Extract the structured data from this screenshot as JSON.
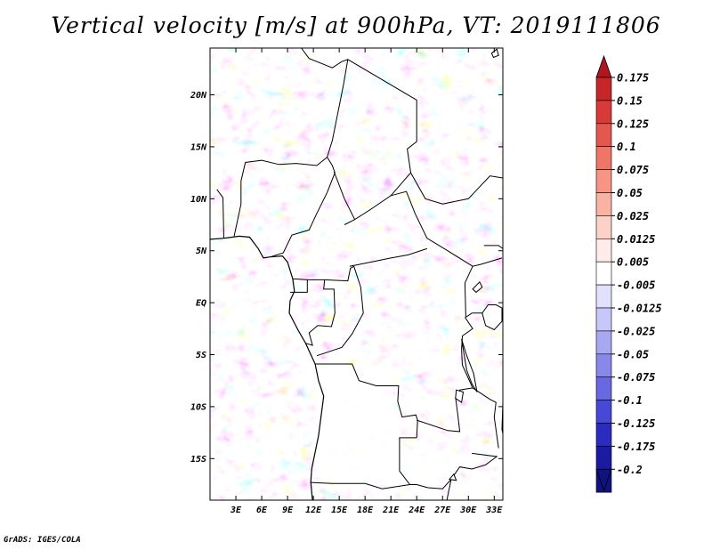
{
  "title": "Vertical velocity [m/s] at 900hPa, VT: 2019111806",
  "footer": "GrADS: IGES/COLA",
  "map": {
    "lon_range": [
      0,
      34
    ],
    "lat_range": [
      -19,
      24.5
    ],
    "lat_ticks": [
      {
        "value": 20,
        "label": "20N"
      },
      {
        "value": 15,
        "label": "15N"
      },
      {
        "value": 10,
        "label": "10N"
      },
      {
        "value": 5,
        "label": "5N"
      },
      {
        "value": 0,
        "label": "EQ"
      },
      {
        "value": -5,
        "label": "5S"
      },
      {
        "value": -10,
        "label": "10S"
      },
      {
        "value": -15,
        "label": "15S"
      }
    ],
    "lon_ticks": [
      {
        "value": 3,
        "label": "3E"
      },
      {
        "value": 6,
        "label": "6E"
      },
      {
        "value": 9,
        "label": "9E"
      },
      {
        "value": 12,
        "label": "12E"
      },
      {
        "value": 15,
        "label": "15E"
      },
      {
        "value": 18,
        "label": "18E"
      },
      {
        "value": 21,
        "label": "21E"
      },
      {
        "value": 24,
        "label": "24E"
      },
      {
        "value": 27,
        "label": "27E"
      },
      {
        "value": 30,
        "label": "30E"
      },
      {
        "value": 33,
        "label": "33E"
      }
    ],
    "borders": [
      [
        [
          10.6,
          24.5
        ],
        [
          11.5,
          23.5
        ],
        [
          14.2,
          22.6
        ],
        [
          15.3,
          23.2
        ],
        [
          16,
          23.4
        ],
        [
          24,
          19.5
        ],
        [
          24,
          15.5
        ],
        [
          22.9,
          14.8
        ],
        [
          23.3,
          12.5
        ]
      ],
      [
        [
          16,
          23.4
        ],
        [
          15.5,
          21
        ],
        [
          14.2,
          15.6
        ],
        [
          13.6,
          14
        ]
      ],
      [
        [
          3.6,
          11.7
        ],
        [
          4.1,
          13.5
        ],
        [
          6,
          13.7
        ],
        [
          8,
          13.3
        ],
        [
          10,
          13.4
        ],
        [
          12.4,
          13.2
        ],
        [
          13.6,
          14
        ]
      ],
      [
        [
          3.6,
          11.7
        ],
        [
          3.6,
          9.5
        ],
        [
          2.8,
          6.4
        ]
      ],
      [
        [
          0.8,
          10.9
        ],
        [
          1.5,
          10.1
        ],
        [
          1.6,
          6.2
        ]
      ],
      [
        [
          7,
          4.4
        ],
        [
          8.5,
          4.8
        ],
        [
          9.5,
          6.5
        ],
        [
          11.5,
          7
        ],
        [
          12.4,
          8.6
        ],
        [
          13.6,
          10.6
        ],
        [
          14.5,
          12.5
        ],
        [
          14.2,
          13.2
        ],
        [
          13.6,
          14
        ]
      ],
      [
        [
          14.4,
          12.6
        ],
        [
          15.6,
          10
        ],
        [
          16.8,
          8
        ],
        [
          18.7,
          9
        ],
        [
          21,
          10.3
        ],
        [
          23.3,
          12.5
        ]
      ],
      [
        [
          15.6,
          7.5
        ],
        [
          16.8,
          8
        ]
      ],
      [
        [
          21,
          10.3
        ],
        [
          22.8,
          10.7
        ],
        [
          23.8,
          8.6
        ],
        [
          25.2,
          6.2
        ],
        [
          27.4,
          5.1
        ],
        [
          30.5,
          3.5
        ],
        [
          31.5,
          3.7
        ],
        [
          33.9,
          4.3
        ]
      ],
      [
        [
          23.3,
          12.5
        ],
        [
          25,
          10
        ],
        [
          27,
          9.5
        ],
        [
          30,
          10
        ],
        [
          32.5,
          12.2
        ],
        [
          34,
          12
        ]
      ],
      [
        [
          9.6,
          2.3
        ],
        [
          11.3,
          2.2
        ],
        [
          13.3,
          2.2
        ],
        [
          16,
          2.1
        ],
        [
          16.3,
          3.3
        ],
        [
          16.7,
          3.5
        ]
      ],
      [
        [
          16.2,
          3.5
        ],
        [
          18.6,
          3.9
        ],
        [
          21,
          4.3
        ],
        [
          23,
          4.6
        ],
        [
          25.2,
          5.2
        ]
      ],
      [
        [
          11.3,
          2.2
        ],
        [
          11.3,
          1
        ],
        [
          9.6,
          1
        ],
        [
          9.3,
          1
        ]
      ],
      [
        [
          13.3,
          2.2
        ],
        [
          13.2,
          1.3
        ],
        [
          14.4,
          1.3
        ],
        [
          14.5,
          -1
        ],
        [
          14.1,
          -2.3
        ],
        [
          12.5,
          -2.2
        ],
        [
          11.5,
          -2.9
        ],
        [
          11.9,
          -4.1
        ],
        [
          11.1,
          -3.9
        ]
      ],
      [
        [
          16.7,
          3.5
        ],
        [
          17.5,
          1.5
        ],
        [
          17.8,
          -1
        ],
        [
          16.5,
          -3
        ],
        [
          15.3,
          -4.3
        ],
        [
          13.5,
          -4.8
        ],
        [
          12.4,
          -5.1
        ]
      ],
      [
        [
          12.2,
          -5.9
        ],
        [
          13,
          -5.9
        ],
        [
          15.5,
          -5.9
        ],
        [
          16.5,
          -5.9
        ],
        [
          17.3,
          -7.5
        ],
        [
          19.3,
          -8
        ],
        [
          21.9,
          -8
        ],
        [
          21.8,
          -9.5
        ],
        [
          22.3,
          -11
        ],
        [
          23.9,
          -10.8
        ],
        [
          24.1,
          -11.3
        ],
        [
          24,
          -13
        ]
      ],
      [
        [
          24,
          -13
        ],
        [
          22,
          -13
        ],
        [
          22,
          -16.2
        ],
        [
          23.2,
          -17.5
        ],
        [
          24,
          -17.5
        ],
        [
          25.3,
          -17.8
        ]
      ],
      [
        [
          11.7,
          -17.3
        ],
        [
          14.2,
          -17.4
        ],
        [
          18,
          -17.4
        ],
        [
          20,
          -17.9
        ],
        [
          23.2,
          -17.5
        ]
      ],
      [
        [
          30.4,
          -1
        ],
        [
          31.5,
          -1
        ],
        [
          33.9,
          -1
        ]
      ],
      [
        [
          29.6,
          -1.4
        ],
        [
          30.5,
          -2.5
        ],
        [
          29.3,
          -3.2
        ],
        [
          29.2,
          -4.5
        ]
      ],
      [
        [
          29.2,
          -4.5
        ],
        [
          29.3,
          -6
        ],
        [
          30.5,
          -8.2
        ],
        [
          29,
          -8.4
        ],
        [
          28.5,
          -9.1
        ],
        [
          28.8,
          -11
        ],
        [
          29,
          -12.4
        ],
        [
          27.6,
          -12.3
        ],
        [
          24,
          -11.3
        ]
      ],
      [
        [
          30.5,
          -8.2
        ],
        [
          32.5,
          -9.3
        ],
        [
          33.2,
          -9.6
        ],
        [
          33,
          -11
        ],
        [
          33.5,
          -14
        ]
      ],
      [
        [
          30.4,
          -14.5
        ],
        [
          33.3,
          -14.8
        ],
        [
          32,
          -15.6
        ],
        [
          30.4,
          -16
        ],
        [
          29,
          -15.8
        ],
        [
          28,
          -17
        ],
        [
          27,
          -17.9
        ],
        [
          25.3,
          -17.8
        ]
      ],
      [
        [
          29.6,
          1.9
        ],
        [
          30.5,
          3.5
        ]
      ],
      [
        [
          29.6,
          1.9
        ],
        [
          29.7,
          -1.4
        ]
      ],
      [
        [
          29.7,
          -1.4
        ],
        [
          30.4,
          -1
        ]
      ],
      [
        [
          31.8,
          5.5
        ],
        [
          33.5,
          5.5
        ],
        [
          34,
          5.2
        ]
      ],
      [
        [
          27.5,
          -19
        ],
        [
          28,
          -17
        ]
      ]
    ],
    "lakes": [
      [
        [
          32.3,
          -0.2
        ],
        [
          33.2,
          -0.2
        ],
        [
          33.9,
          -0.5
        ],
        [
          33.9,
          -1.8
        ],
        [
          33,
          -2.6
        ],
        [
          32,
          -2.2
        ],
        [
          31.6,
          -1
        ],
        [
          32.3,
          -0.2
        ]
      ],
      [
        [
          29.2,
          -3.5
        ],
        [
          29.5,
          -5
        ],
        [
          29.8,
          -6.5
        ],
        [
          30.4,
          -7.8
        ],
        [
          31,
          -8.6
        ],
        [
          30.6,
          -6.8
        ],
        [
          29.8,
          -5.1
        ],
        [
          29.2,
          -3.5
        ]
      ],
      [
        [
          34,
          -9.6
        ],
        [
          34.4,
          -11
        ],
        [
          34.7,
          -12.5
        ],
        [
          34.3,
          -13.8
        ],
        [
          33.9,
          -12.2
        ],
        [
          34,
          -9.6
        ]
      ],
      [
        [
          28.6,
          -8.4
        ],
        [
          29.4,
          -8.6
        ],
        [
          29.2,
          -9.6
        ],
        [
          28.5,
          -9.2
        ],
        [
          28.6,
          -8.4
        ]
      ],
      [
        [
          30.5,
          1.3
        ],
        [
          31.3,
          2
        ],
        [
          31.6,
          1.5
        ],
        [
          30.9,
          1
        ],
        [
          30.5,
          1.3
        ]
      ],
      [
        [
          27.8,
          -17
        ],
        [
          28.3,
          -16.5
        ],
        [
          28.6,
          -17.1
        ],
        [
          27.8,
          -17
        ]
      ],
      [
        [
          32.7,
          24
        ],
        [
          33.3,
          24.4
        ],
        [
          33.5,
          23.8
        ],
        [
          32.9,
          23.6
        ]
      ]
    ],
    "coastline": [
      [
        [
          0,
          6.1
        ],
        [
          1.6,
          6.2
        ],
        [
          3.4,
          6.4
        ],
        [
          4.6,
          6.3
        ],
        [
          5.6,
          5.2
        ],
        [
          6.2,
          4.3
        ],
        [
          7,
          4.4
        ],
        [
          8.4,
          4.5
        ],
        [
          9,
          3.9
        ],
        [
          9.6,
          2.3
        ],
        [
          9.8,
          1.1
        ],
        [
          9.3,
          0.2
        ],
        [
          9.2,
          -1
        ],
        [
          10.2,
          -2.6
        ],
        [
          11.1,
          -3.9
        ],
        [
          12.2,
          -5.9
        ],
        [
          12.6,
          -7.5
        ],
        [
          13.2,
          -9
        ],
        [
          12.6,
          -12.8
        ],
        [
          11.8,
          -16
        ],
        [
          11.7,
          -17.3
        ],
        [
          11.9,
          -19
        ]
      ]
    ]
  },
  "colorbar": {
    "labels": [
      "0.175",
      "0.15",
      "0.125",
      "0.1",
      "0.075",
      "0.05",
      "0.025",
      "0.0125",
      "0.005",
      "-0.005",
      "-0.0125",
      "-0.025",
      "-0.05",
      "-0.075",
      "-0.1",
      "-0.125",
      "-0.175",
      "-0.2"
    ],
    "colors": [
      "#b0161f",
      "#c62628",
      "#d83a37",
      "#e4574d",
      "#ef7666",
      "#f69584",
      "#fab3a3",
      "#fcd1c6",
      "#ffecea",
      "#ffffff",
      "#e1e1ff",
      "#c7c7fa",
      "#a8a8f2",
      "#8888eb",
      "#6868e2",
      "#4848d6",
      "#2b2bbf",
      "#1a1aa2",
      "#111180"
    ],
    "top_arrow_color": "#b0161f",
    "bottom_arrow_color": "#111180"
  }
}
